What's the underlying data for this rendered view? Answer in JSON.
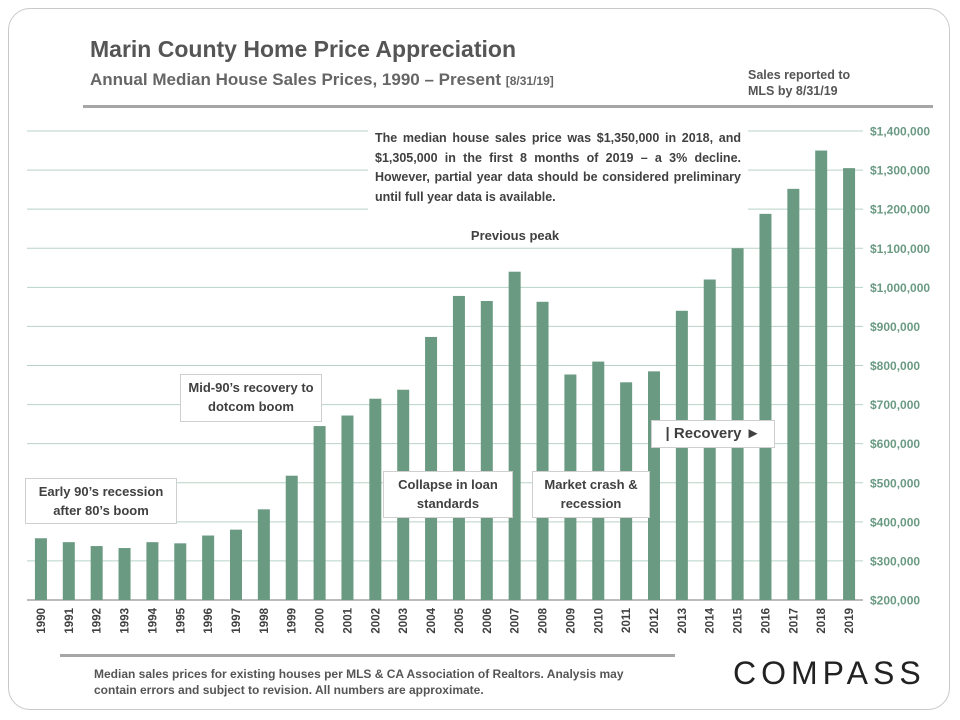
{
  "header": {
    "title": "Marin County Home Price Appreciation",
    "subtitle": "Annual Median House Sales Prices, 1990 – Present",
    "subtitle_date": "[8/31/19]",
    "as_of": "Sales reported to MLS by 8/31/19"
  },
  "annotations": {
    "callout": "The median house sales price was $1,350,000 in 2018, and $1,305,000 in the first 8 months of 2019 – a 3% decline. However, partial year data should be considered preliminary until full year data is available.",
    "early_90s": "Early 90’s recession after 80’s boom",
    "mid_90s": "Mid-90’s recovery to dotcom boom",
    "previous_peak": "Previous peak",
    "collapse": "Collapse in loan standards",
    "market_crash": "Market crash & recession",
    "recovery": "| Recovery ►"
  },
  "footer": {
    "footnote": "Median sales prices for existing houses per MLS & CA Association of Realtors. Analysis may contain errors and subject to revision. All numbers are approximate.",
    "logo": "COMPASS"
  },
  "colors": {
    "bar": "#6b9a83",
    "grid": "#b8d3c5",
    "axis_label": "#6b9a83"
  },
  "chart_data": {
    "type": "bar",
    "categories": [
      "1990",
      "1991",
      "1992",
      "1993",
      "1994",
      "1995",
      "1996",
      "1997",
      "1998",
      "1999",
      "2000",
      "2001",
      "2002",
      "2003",
      "2004",
      "2005",
      "2006",
      "2007",
      "2008",
      "2009",
      "2010",
      "2011",
      "2012",
      "2013",
      "2014",
      "2015",
      "2016",
      "2017",
      "2018",
      "2019"
    ],
    "values": [
      358000,
      348000,
      338000,
      333000,
      348000,
      345000,
      365000,
      380000,
      432000,
      518000,
      645000,
      672000,
      715000,
      738000,
      873000,
      978000,
      965000,
      1040000,
      963000,
      777000,
      810000,
      757000,
      785000,
      940000,
      1020000,
      1100000,
      1188000,
      1252000,
      1350000,
      1305000
    ],
    "ylim": [
      200000,
      1400000
    ],
    "yticks": [
      200000,
      300000,
      400000,
      500000,
      600000,
      700000,
      800000,
      900000,
      1000000,
      1100000,
      1200000,
      1300000,
      1400000
    ],
    "ytick_labels": [
      "$200,000",
      "$300,000",
      "$400,000",
      "$500,000",
      "$600,000",
      "$700,000",
      "$800,000",
      "$900,000",
      "$1,000,000",
      "$1,100,000",
      "$1,200,000",
      "$1,300,000",
      "$1,400,000"
    ],
    "yaxis_position": "right",
    "grid": true,
    "legend": "none"
  }
}
